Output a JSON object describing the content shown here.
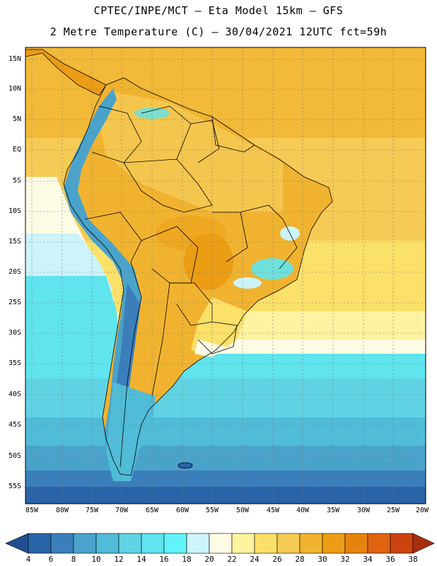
{
  "header": {
    "line1": "CPTEC/INPE/MCT –  Eta Model 15km – GFS",
    "line2": "2 Metre Temperature (C) – 30/04/2021 12UTC fct=59h"
  },
  "axes": {
    "lat_labels": [
      "15N",
      "10N",
      "5N",
      "EQ",
      "5S",
      "10S",
      "15S",
      "20S",
      "25S",
      "30S",
      "35S",
      "40S",
      "45S",
      "50S",
      "55S"
    ],
    "lon_labels": [
      "85W",
      "80W",
      "75W",
      "70W",
      "65W",
      "60W",
      "55W",
      "50W",
      "45W",
      "40W",
      "35W",
      "30W",
      "25W",
      "20W"
    ]
  },
  "colorbar": {
    "values": [
      "4",
      "6",
      "8",
      "10",
      "12",
      "14",
      "16",
      "18",
      "20",
      "22",
      "24",
      "26",
      "28",
      "30",
      "32",
      "34",
      "36",
      "38"
    ],
    "colors": [
      "#2a64a8",
      "#3a7fbb",
      "#4aa3cb",
      "#50bcd8",
      "#5fd3e4",
      "#60e4ee",
      "#62f3fb",
      "#cdf3fb",
      "#fefbe5",
      "#fcf3a0",
      "#fbe069",
      "#f6cb55",
      "#f1b32f",
      "#eb9d15",
      "#e8820f",
      "#e06410",
      "#cc430f",
      "#a82e0e"
    ]
  },
  "palette": {
    "ocean_cold": "#2a64a8",
    "ocean_cool": "#4aa3cb",
    "ocean_mild": "#60e4ee",
    "ocean_warm": "#fbe069",
    "land_warm": "#f1b32f",
    "andes": "#3a7fbb"
  }
}
